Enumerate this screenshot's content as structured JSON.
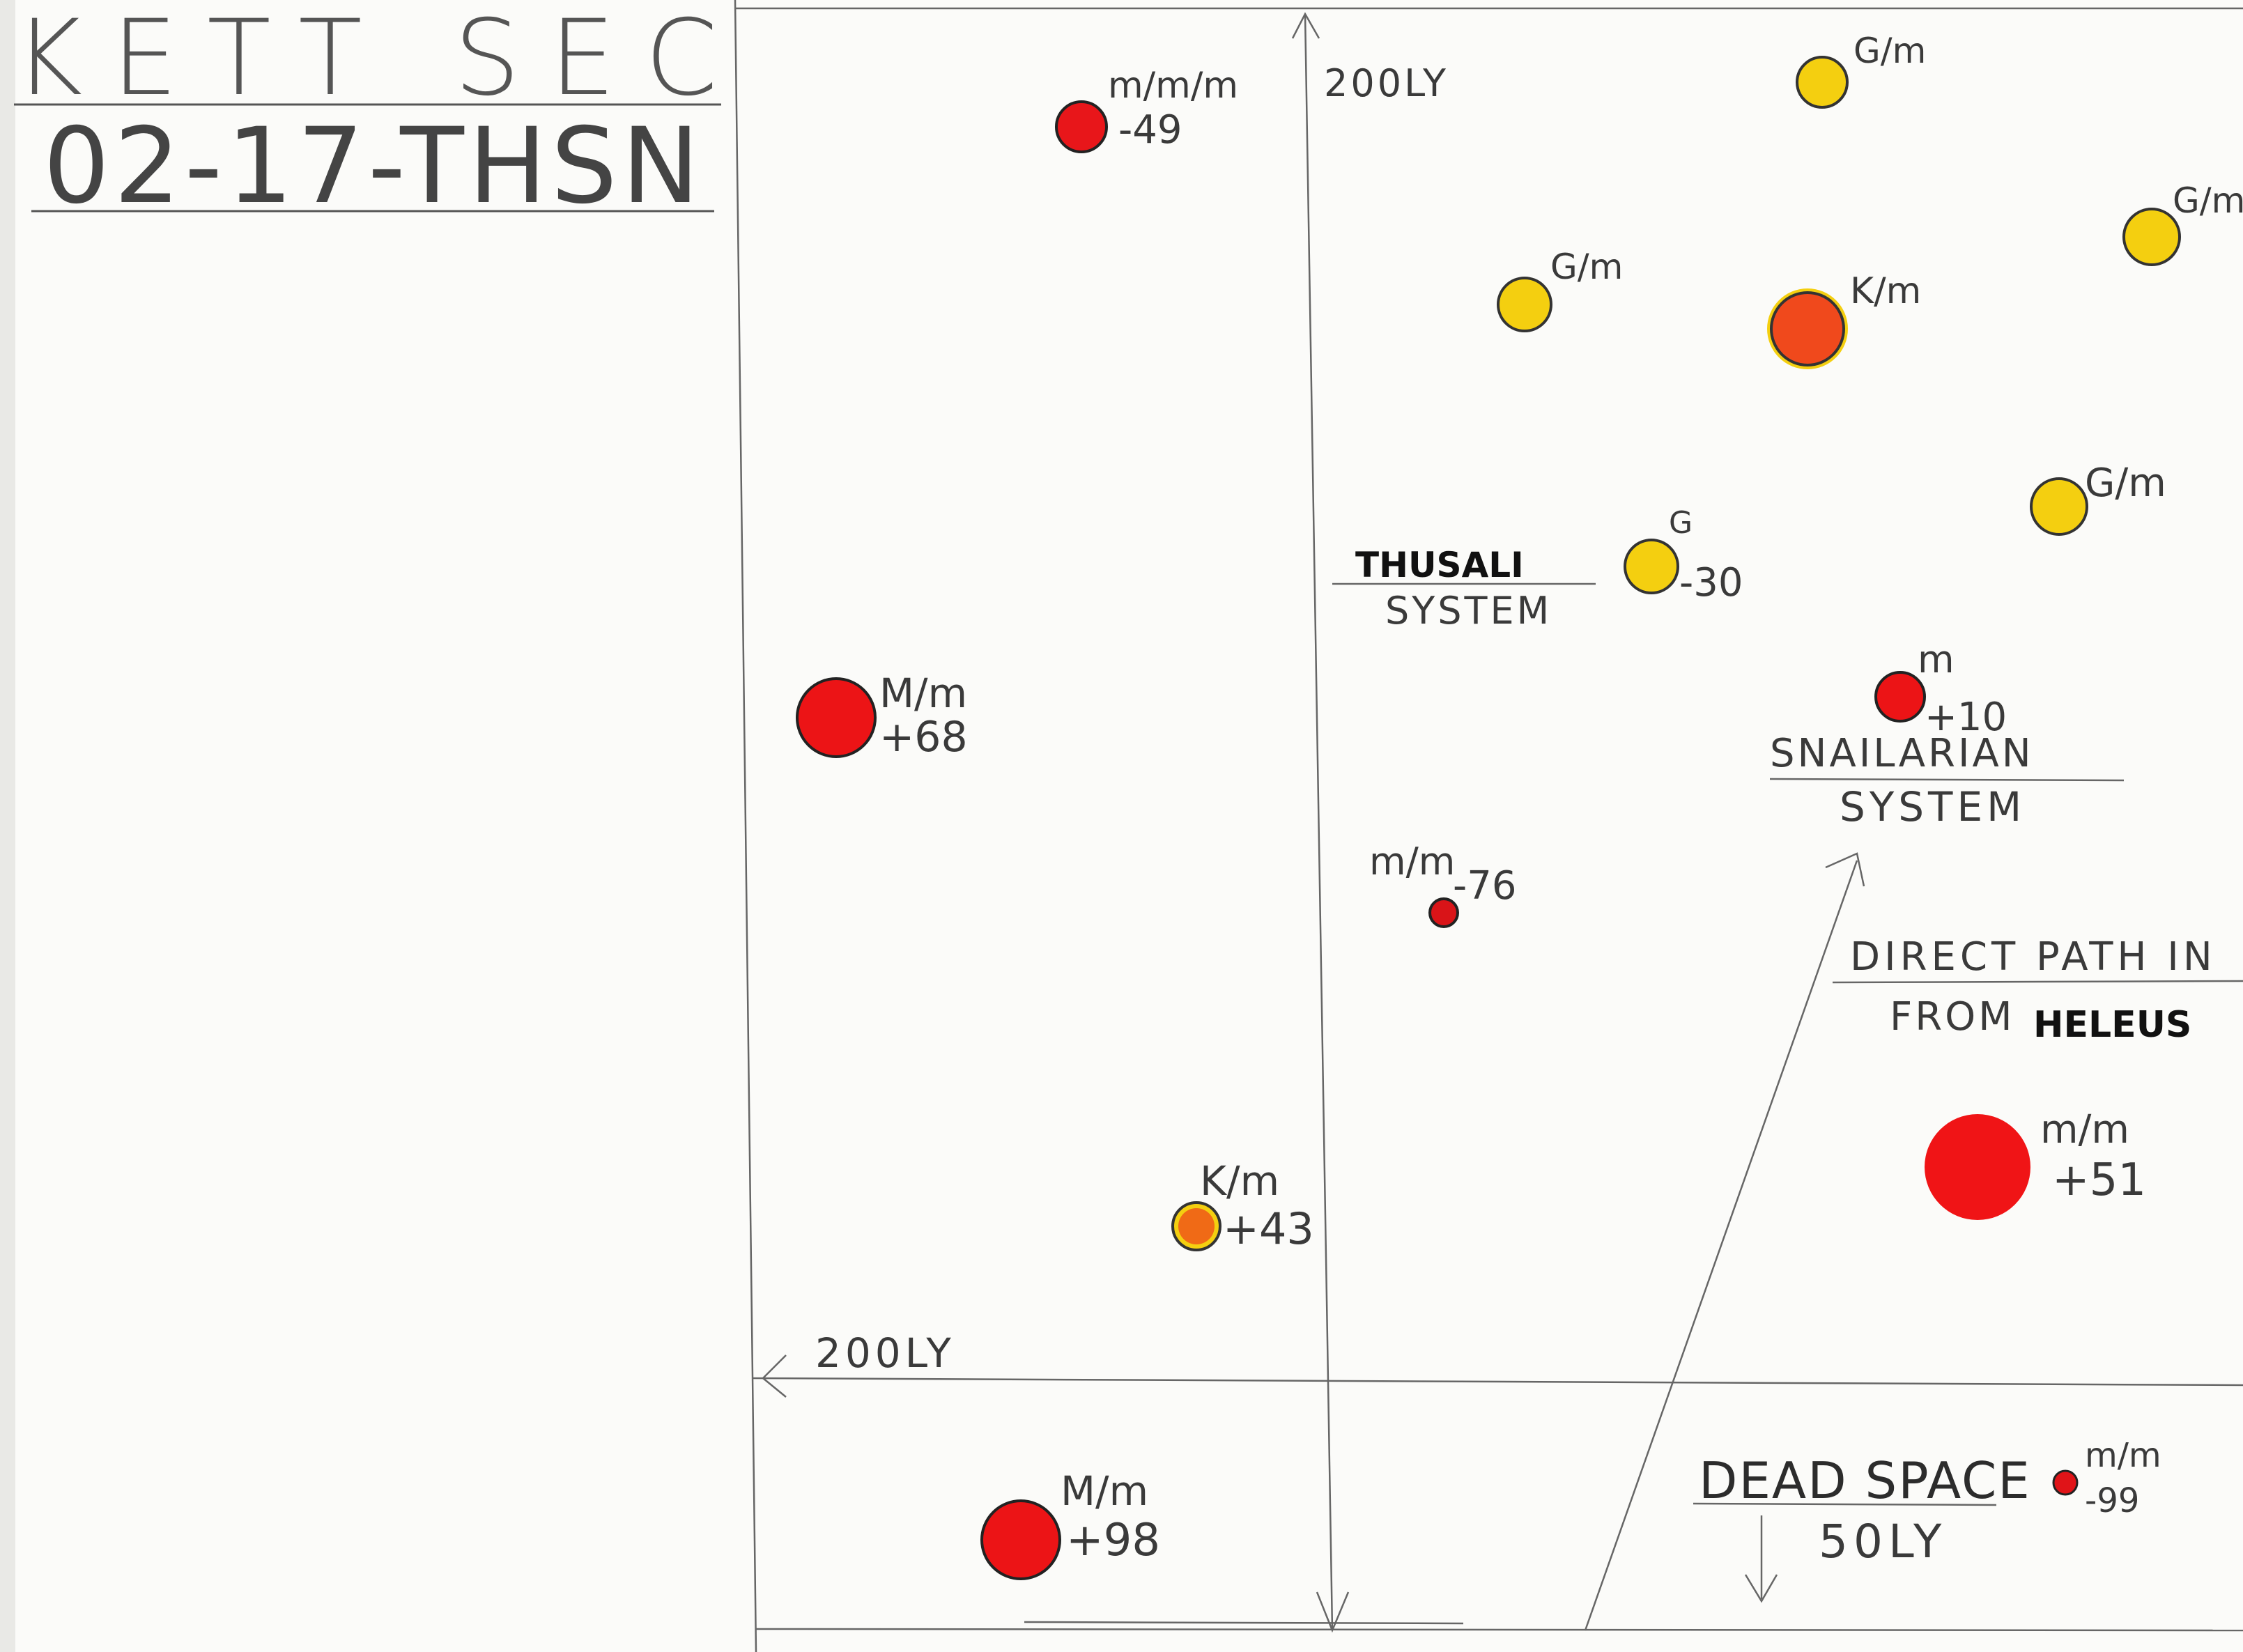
{
  "header": {
    "title": "KETT SEC",
    "code": "02-17-THSN"
  },
  "scale": {
    "vertical_label": "200LY",
    "horizontal_label": "200LY"
  },
  "stars": [
    {
      "id": "mmm-49",
      "class": "m/m/m",
      "z": "-49",
      "color": "#e8161a"
    },
    {
      "id": "gm-top",
      "class": "G/m",
      "z": "",
      "color": "#f4cf10"
    },
    {
      "id": "gm-right",
      "class": "G/m",
      "z": "",
      "color": "#f4cf10"
    },
    {
      "id": "gm-mid",
      "class": "G/m",
      "z": "",
      "color": "#f4cf10"
    },
    {
      "id": "km-top",
      "class": "K/m",
      "z": "",
      "color": "#f0491c"
    },
    {
      "id": "gm-lower",
      "class": "G/m",
      "z": "",
      "color": "#f4cf10"
    },
    {
      "id": "g-30",
      "class": "G",
      "z": "-30",
      "color": "#f4cf10"
    },
    {
      "id": "mm+68",
      "class": "M/m",
      "z": "+68",
      "color": "#ec1416"
    },
    {
      "id": "m+10",
      "class": "m",
      "z": "+10",
      "color": "#ec1416"
    },
    {
      "id": "mm-76",
      "class": "m/m",
      "z": "-76",
      "color": "#d91418"
    },
    {
      "id": "km+43",
      "class": "K/m",
      "z": "+43",
      "color": "#f06a16"
    },
    {
      "id": "mm+51",
      "class": "m/m",
      "z": "+51",
      "color": "#f01416"
    },
    {
      "id": "mm+98",
      "class": "M/m",
      "z": "+98",
      "color": "#ec1416"
    },
    {
      "id": "mm-99",
      "class": "m/m",
      "z": "-99",
      "color": "#e01418"
    }
  ],
  "systems": {
    "thusali": {
      "name": "THUSALI",
      "suffix": "SYSTEM"
    },
    "snailarian": {
      "name": "SNAILARIAN",
      "suffix": "SYSTEM"
    }
  },
  "path_note": {
    "line1": "DIRECT PATH IN",
    "line2_prefix": "FROM",
    "line2_name": "HELEUS"
  },
  "dead_space": {
    "label": "DEAD SPACE",
    "distance": "50LY"
  }
}
